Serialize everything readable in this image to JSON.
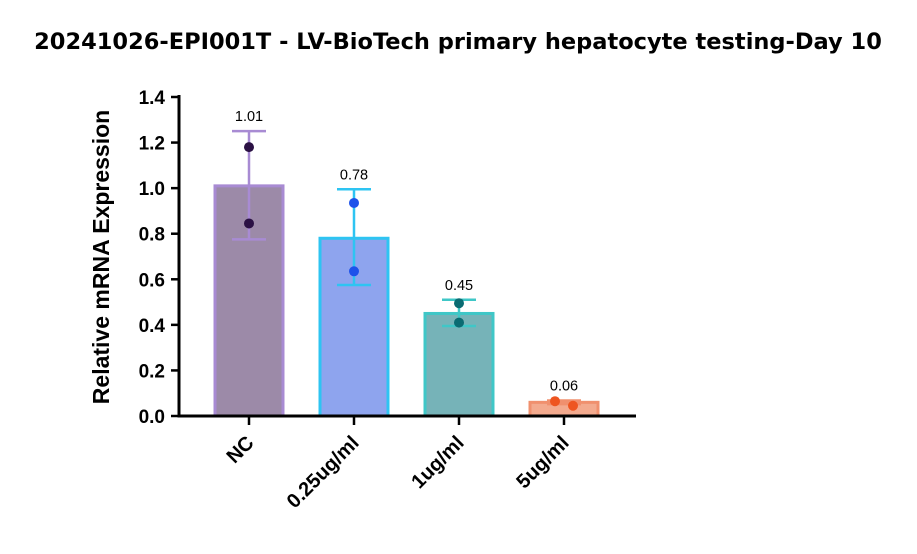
{
  "chart_data": {
    "type": "bar",
    "title": "20241026-EPI001T - LV-BioTech primary hepatocyte testing-Day 10",
    "xlabel": "",
    "ylabel": "Relative mRNA Expression",
    "ylim": [
      0,
      1.4
    ],
    "yticks": [
      "0.0",
      "0.2",
      "0.4",
      "0.6",
      "0.8",
      "1.0",
      "1.2",
      "1.4"
    ],
    "y_tick_step": 0.2,
    "categories": [
      "NC",
      "0.25ug/ml",
      "1ug/ml",
      "5ug/ml"
    ],
    "values": [
      1.01,
      0.78,
      0.45,
      0.06
    ],
    "value_labels": [
      "1.01",
      "0.78",
      "0.45",
      "0.06"
    ],
    "error_high": [
      1.25,
      0.995,
      0.51,
      0.068
    ],
    "error_low": [
      0.775,
      0.575,
      0.395,
      0.052
    ],
    "points": [
      [
        1.18,
        0.845
      ],
      [
        0.935,
        0.635
      ],
      [
        0.495,
        0.41
      ],
      [
        0.065,
        0.045
      ]
    ],
    "colors": {
      "bar_fill": [
        "#9c8aa8",
        "#8ea4ee",
        "#76b3b8",
        "#f3aa8e"
      ],
      "bar_edge": [
        "#a88bd3",
        "#2ec4f2",
        "#3fc7c7",
        "#f0906e"
      ],
      "point": [
        "#2b1144",
        "#1d52ea",
        "#0a6b72",
        "#ee5520"
      ],
      "axis": "#000000"
    },
    "grid": false,
    "legend": "none"
  }
}
